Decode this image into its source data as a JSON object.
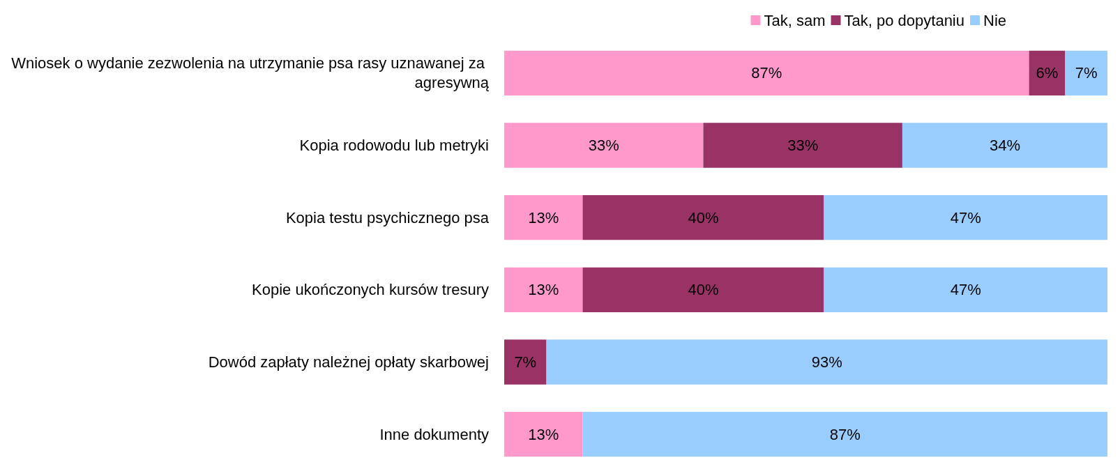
{
  "chart_data": {
    "type": "bar",
    "orientation": "horizontal",
    "stacked": true,
    "legend": "top right",
    "categories": [
      "Wniosek o wydanie zezwolenia na utrzymanie psa rasy uznawanej za agresywną",
      "Kopia rodowodu lub metryki",
      "Kopia testu psychicznego psa",
      "Kopie ukończonych kursów tresury",
      "Dowód zapłaty należnej opłaty skarbowej",
      "Inne dokumenty"
    ],
    "xlim": [
      0,
      100
    ],
    "series": [
      {
        "name": "Tak, sam",
        "color": "#ff99cc",
        "values": [
          87,
          33,
          13,
          13,
          null,
          13
        ],
        "value_labels": [
          "87%",
          "33%",
          "13%",
          "13%",
          null,
          "13%"
        ]
      },
      {
        "name": "Tak, po dopytaniu",
        "color": "#993366",
        "values": [
          6,
          33,
          40,
          40,
          7,
          null
        ],
        "value_labels": [
          "6%",
          "33%",
          "40%",
          "40%",
          "7%",
          null
        ]
      },
      {
        "name": "Nie",
        "color": "#99ccff",
        "values": [
          7,
          34,
          47,
          47,
          93,
          87
        ],
        "value_labels": [
          "7%",
          "34%",
          "47%",
          "47%",
          "93%",
          "87%"
        ]
      }
    ]
  }
}
